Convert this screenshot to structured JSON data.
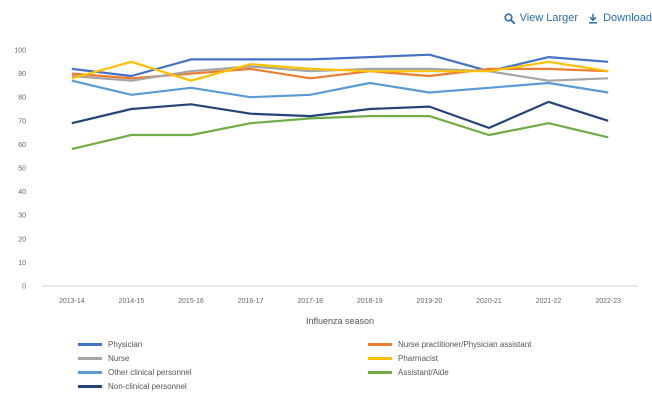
{
  "toolbar": {
    "view_larger_label": "View Larger",
    "download_label": "Download",
    "view_larger_icon": "magnifier-icon",
    "download_icon": "download-icon"
  },
  "chart_data": {
    "type": "line",
    "xlabel": "Influenza season",
    "ylabel": "",
    "ylim": [
      0,
      100
    ],
    "yticks": [
      0,
      10,
      20,
      30,
      40,
      50,
      60,
      70,
      80,
      90,
      100
    ],
    "grid": false,
    "legend_position": "bottom",
    "categories": [
      "2013-14",
      "2014-15",
      "2015-16",
      "2016-17",
      "2017-18",
      "2018-19",
      "2019-20",
      "2020-21",
      "2021-22",
      "2022-23"
    ],
    "series": [
      {
        "name": "Physician",
        "color": "#4472c4",
        "values": [
          92,
          89,
          96,
          96,
          96,
          97,
          98,
          91,
          97,
          95
        ]
      },
      {
        "name": "Nurse practitioner/Physician assistant",
        "color": "#ed7d31",
        "values": [
          90,
          88,
          90,
          92,
          88,
          91,
          89,
          92,
          92,
          91
        ]
      },
      {
        "name": "Nurse",
        "color": "#a5a5a5",
        "values": [
          89,
          87,
          91,
          93,
          91,
          92,
          92,
          91,
          87,
          88
        ]
      },
      {
        "name": "Pharmacist",
        "color": "#ffc000",
        "values": [
          88,
          95,
          87,
          94,
          92,
          91,
          91,
          91,
          95,
          91
        ]
      },
      {
        "name": "Other clinical personnel",
        "color": "#5b9bd5",
        "values": [
          87,
          81,
          84,
          80,
          81,
          86,
          82,
          84,
          86,
          82
        ]
      },
      {
        "name": "Assistant/Aide",
        "color": "#70ad47",
        "values": [
          58,
          64,
          64,
          69,
          71,
          72,
          72,
          64,
          69,
          63
        ]
      },
      {
        "name": "Non-clinical personnel",
        "color": "#264478",
        "values": [
          69,
          75,
          77,
          73,
          72,
          75,
          76,
          67,
          78,
          70
        ]
      }
    ]
  }
}
